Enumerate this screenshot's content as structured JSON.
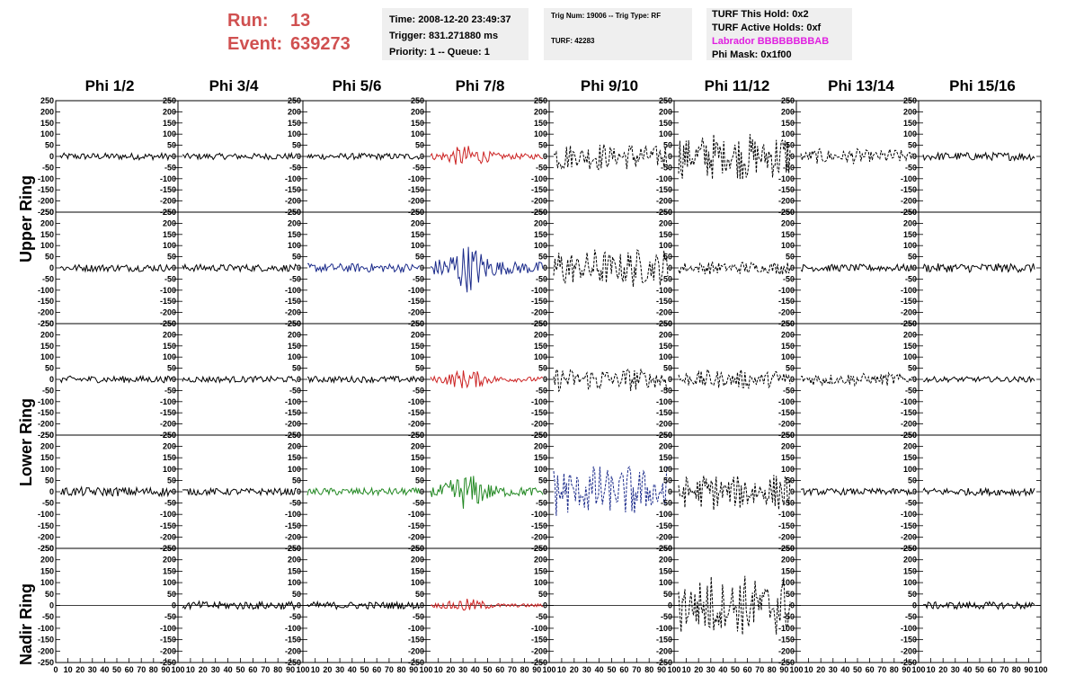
{
  "header": {
    "run_label": "Run:",
    "run_value": "13",
    "event_label": "Event:",
    "event_value": "639273",
    "time": "Time: 2008-12-20 23:49:37",
    "trigger": "Trigger: 831.271880 ms",
    "priority": "Priority: 1 -- Queue: 1",
    "trig_num": "Trig Num: 19006 -- Trig Type: RF",
    "turf": "TURF: 42283",
    "turf_this_hold": "TURF This Hold: 0x2",
    "turf_active_holds": "TURF Active Holds: 0xf",
    "labrador": "Labrador BBBBBBBBAB",
    "phi_mask": "Phi Mask: 0x1f00"
  },
  "colors": {
    "header_red": "#d05050",
    "labrador_magenta": "#e020e0",
    "trace_black": "#000000",
    "trace_red": "#cc2222",
    "trace_blue": "#1a2a8a",
    "trace_green": "#228822",
    "info_box_bg": "#efefef"
  },
  "columns": [
    "Phi 1/2",
    "Phi 3/4",
    "Phi 5/6",
    "Phi 7/8",
    "Phi 9/10",
    "Phi 11/12",
    "Phi 13/14",
    "Phi 15/16"
  ],
  "rings": [
    {
      "label": "Upper Ring",
      "rows": [
        0,
        1
      ]
    },
    {
      "label": "Lower Ring",
      "rows": [
        2,
        3
      ]
    },
    {
      "label": "Nadir Ring",
      "rows": [
        4
      ]
    }
  ],
  "chart_data": {
    "type": "line",
    "title": "",
    "xlim": [
      0,
      100
    ],
    "ylim": [
      -250,
      250
    ],
    "x_ticks": [
      "0",
      "10",
      "20",
      "30",
      "40",
      "50",
      "60",
      "70",
      "80",
      "90",
      "100"
    ],
    "y_ticks": [
      "-250",
      "-200",
      "-150",
      "-100",
      "-50",
      "0",
      "50",
      "100",
      "150",
      "200",
      "250"
    ],
    "samples_per_trace": 90,
    "note_style": "waveform traces; solid = normal, dashed = alternate polarisation",
    "panels": [
      [
        {
          "color": "black",
          "dashed": false,
          "amp": 15,
          "env": "flat"
        },
        {
          "color": "black",
          "dashed": false,
          "amp": 14,
          "env": "flat"
        },
        {
          "color": "black",
          "dashed": false,
          "amp": 14,
          "env": "flat"
        },
        {
          "color": "red",
          "dashed": false,
          "amp": 50,
          "env": "pulse"
        },
        {
          "color": "black",
          "dashed": true,
          "amp": 65,
          "env": "wide"
        },
        {
          "color": "black",
          "dashed": true,
          "amp": 110,
          "env": "wide"
        },
        {
          "color": "black",
          "dashed": true,
          "amp": 35,
          "env": "wide"
        },
        {
          "color": "black",
          "dashed": false,
          "amp": 18,
          "env": "flat"
        }
      ],
      [
        {
          "color": "black",
          "dashed": false,
          "amp": 16,
          "env": "flat"
        },
        {
          "color": "black",
          "dashed": false,
          "amp": 16,
          "env": "flat"
        },
        {
          "color": "blue",
          "dashed": false,
          "amp": 20,
          "env": "flat"
        },
        {
          "color": "blue",
          "dashed": false,
          "amp": 110,
          "env": "pulse"
        },
        {
          "color": "black",
          "dashed": true,
          "amp": 90,
          "env": "wide"
        },
        {
          "color": "black",
          "dashed": true,
          "amp": 30,
          "env": "wide"
        },
        {
          "color": "black",
          "dashed": false,
          "amp": 16,
          "env": "flat"
        },
        {
          "color": "black",
          "dashed": false,
          "amp": 20,
          "env": "flat"
        }
      ],
      [
        {
          "color": "black",
          "dashed": false,
          "amp": 15,
          "env": "flat"
        },
        {
          "color": "black",
          "dashed": false,
          "amp": 14,
          "env": "flat"
        },
        {
          "color": "black",
          "dashed": false,
          "amp": 14,
          "env": "flat"
        },
        {
          "color": "red",
          "dashed": false,
          "amp": 45,
          "env": "pulse"
        },
        {
          "color": "black",
          "dashed": true,
          "amp": 55,
          "env": "wide"
        },
        {
          "color": "black",
          "dashed": true,
          "amp": 45,
          "env": "wide"
        },
        {
          "color": "black",
          "dashed": true,
          "amp": 30,
          "env": "wide"
        },
        {
          "color": "black",
          "dashed": false,
          "amp": 12,
          "env": "flat"
        }
      ],
      [
        {
          "color": "black",
          "dashed": false,
          "amp": 20,
          "env": "flat"
        },
        {
          "color": "black",
          "dashed": false,
          "amp": 15,
          "env": "flat"
        },
        {
          "color": "green",
          "dashed": false,
          "amp": 16,
          "env": "flat"
        },
        {
          "color": "green",
          "dashed": false,
          "amp": 80,
          "env": "pulse"
        },
        {
          "color": "blue",
          "dashed": true,
          "amp": 120,
          "env": "wide"
        },
        {
          "color": "black",
          "dashed": true,
          "amp": 85,
          "env": "wide"
        },
        {
          "color": "black",
          "dashed": false,
          "amp": 14,
          "env": "flat"
        },
        {
          "color": "black",
          "dashed": false,
          "amp": 16,
          "env": "flat"
        }
      ],
      [
        {
          "color": "black",
          "dashed": false,
          "amp": 0,
          "env": "zero"
        },
        {
          "color": "black",
          "dashed": false,
          "amp": 18,
          "env": "flat"
        },
        {
          "color": "black",
          "dashed": false,
          "amp": 16,
          "env": "flat"
        },
        {
          "color": "red",
          "dashed": false,
          "amp": 30,
          "env": "pulse"
        },
        {
          "color": "black",
          "dashed": false,
          "amp": 0,
          "env": "zero"
        },
        {
          "color": "black",
          "dashed": true,
          "amp": 140,
          "env": "wide"
        },
        {
          "color": "black",
          "dashed": false,
          "amp": 0,
          "env": "zero"
        },
        {
          "color": "black",
          "dashed": false,
          "amp": 16,
          "env": "flat"
        }
      ]
    ]
  }
}
